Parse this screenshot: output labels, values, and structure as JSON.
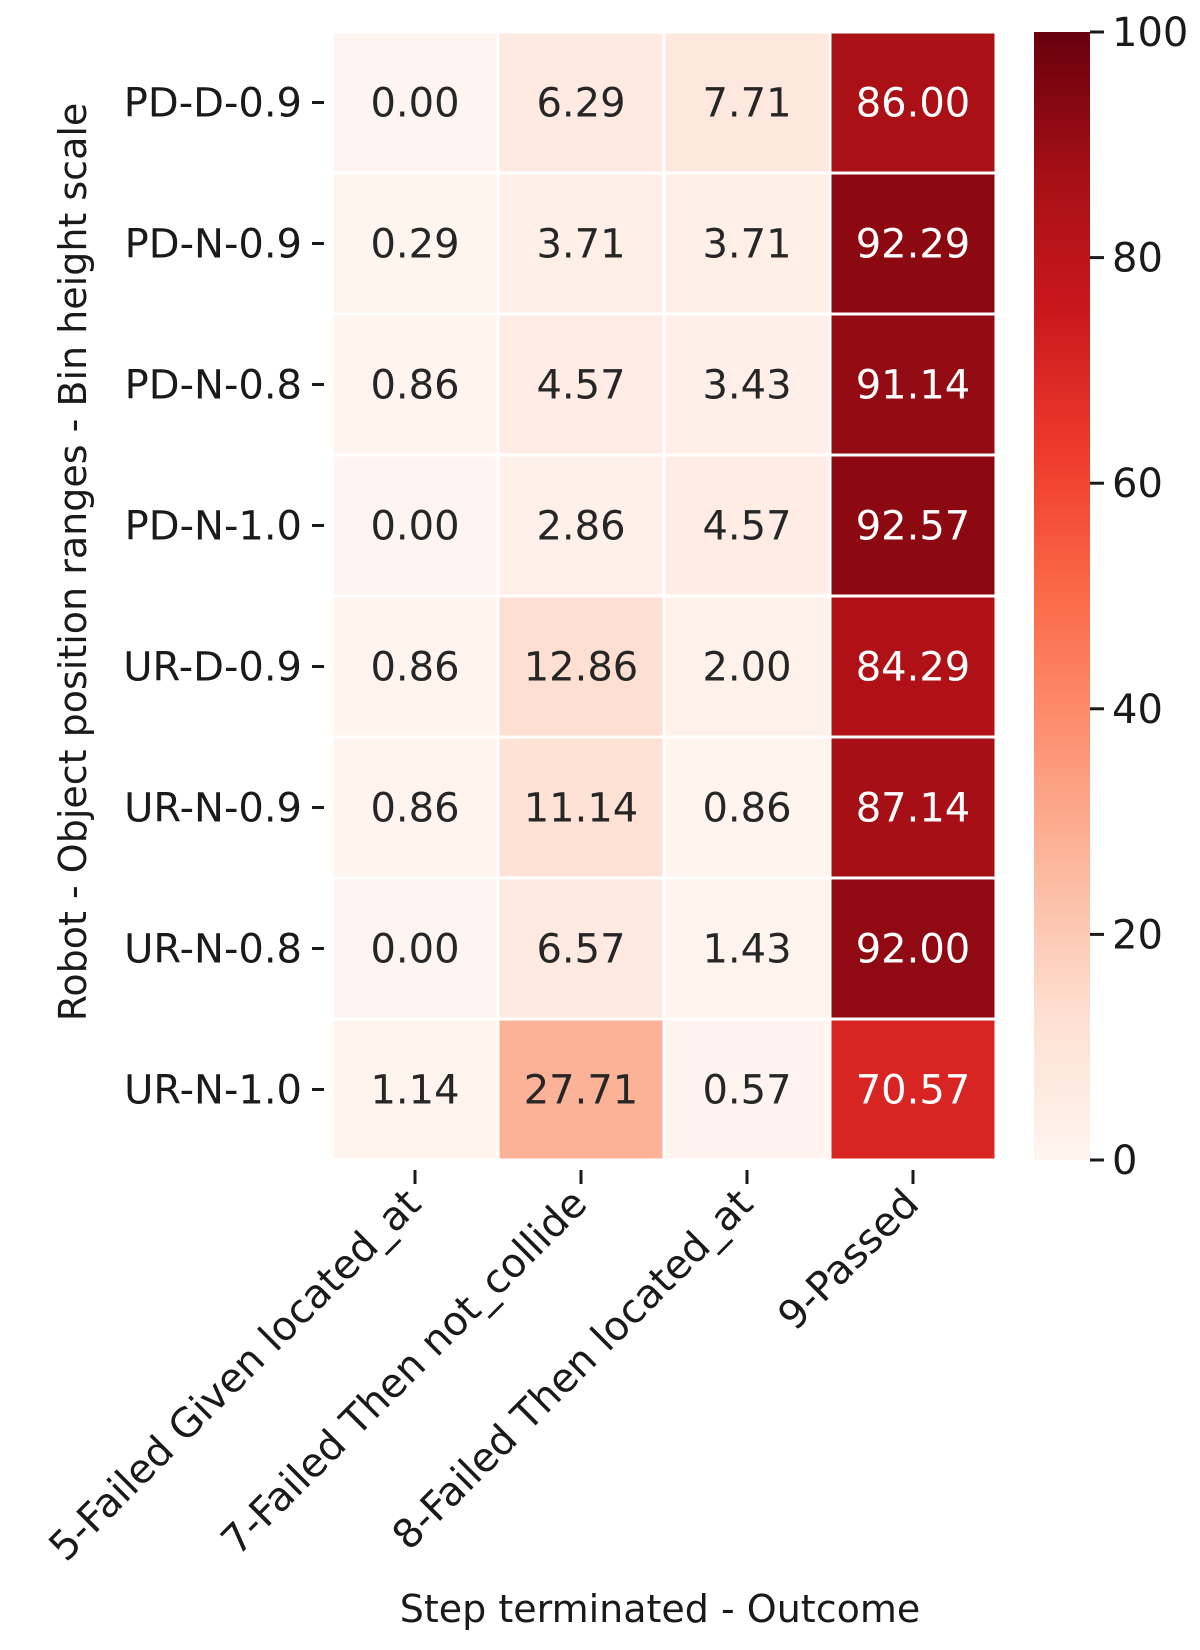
{
  "chart_data": {
    "type": "heatmap",
    "title": "",
    "xlabel": "Step terminated - Outcome",
    "ylabel": "Robot - Object position ranges - Bin height scale",
    "x_categories": [
      "5-Failed Given located_at",
      "7-Failed  Then not_collide",
      "8-Failed  Then located_at",
      "9-Passed"
    ],
    "y_categories": [
      "PD-D-0.9",
      "PD-N-0.9",
      "PD-N-0.8",
      "PD-N-1.0",
      "UR-D-0.9",
      "UR-N-0.9",
      "UR-N-0.8",
      "UR-N-1.0"
    ],
    "values": [
      [
        0.0,
        6.29,
        7.71,
        86.0
      ],
      [
        0.29,
        3.71,
        3.71,
        92.29
      ],
      [
        0.86,
        4.57,
        3.43,
        91.14
      ],
      [
        0.0,
        2.86,
        4.57,
        92.57
      ],
      [
        0.86,
        12.86,
        2.0,
        84.29
      ],
      [
        0.86,
        11.14,
        0.86,
        87.14
      ],
      [
        0.0,
        6.57,
        1.43,
        92.0
      ],
      [
        1.14,
        27.71,
        0.57,
        70.57
      ]
    ],
    "value_format": "0.00",
    "colormap": "Reds",
    "colorbar": {
      "range": [
        0,
        100
      ],
      "ticks": [
        0,
        20,
        40,
        60,
        80,
        100
      ]
    }
  }
}
